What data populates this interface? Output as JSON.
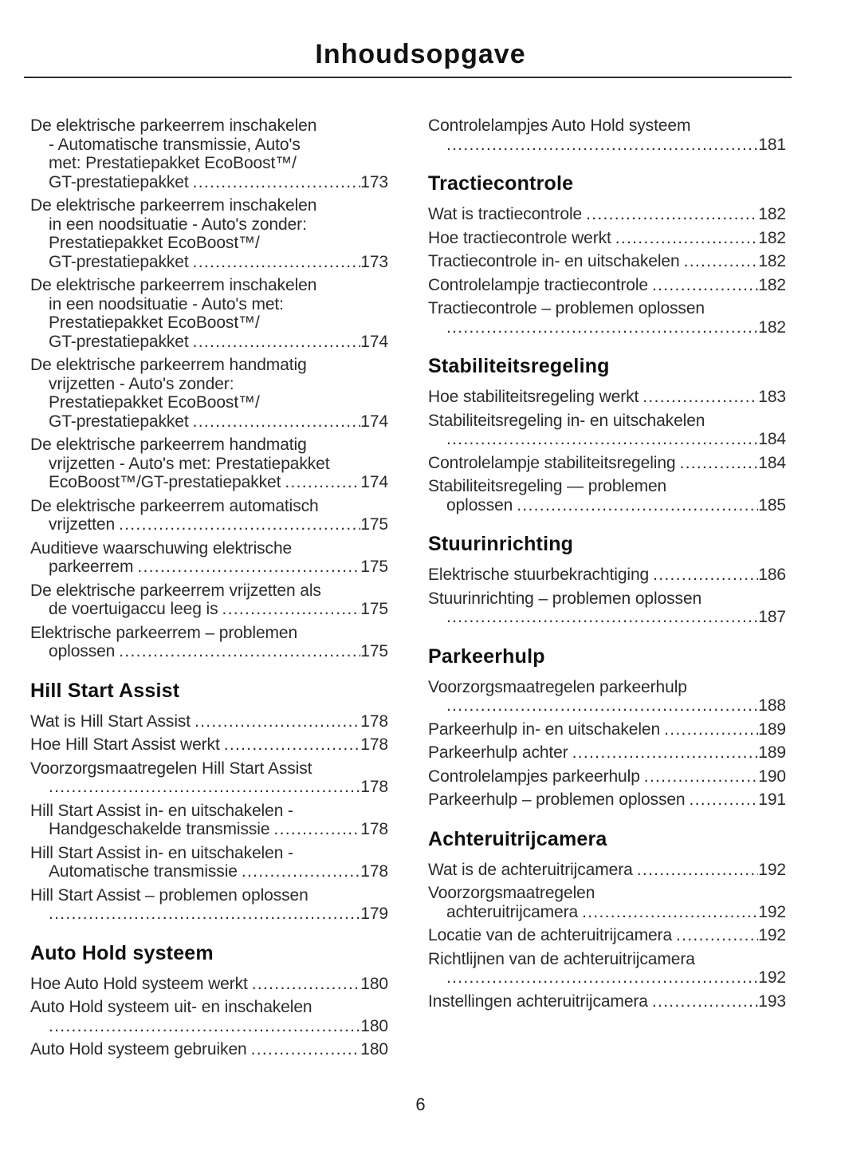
{
  "page": {
    "title": "Inhoudsopgave",
    "page_number": "6"
  },
  "columns": [
    {
      "sections": [
        {
          "heading": "",
          "entries": [
            {
              "lines": [
                "De elektrische parkeerrem inschakelen",
                "- Automatische transmissie, Auto's",
                "met: Prestatiepakket EcoBoost™/"
              ],
              "tail": "GT-prestatiepakket",
              "page": "173"
            },
            {
              "lines": [
                "De elektrische parkeerrem inschakelen",
                "in een noodsituatie - Auto's zonder:",
                "Prestatiepakket EcoBoost™/"
              ],
              "tail": "GT-prestatiepakket",
              "page": "173"
            },
            {
              "lines": [
                "De elektrische parkeerrem inschakelen",
                "in een noodsituatie - Auto's met:",
                "Prestatiepakket EcoBoost™/"
              ],
              "tail": "GT-prestatiepakket",
              "page": "174"
            },
            {
              "lines": [
                "De elektrische parkeerrem handmatig",
                "vrijzetten - Auto's zonder:",
                "Prestatiepakket EcoBoost™/"
              ],
              "tail": "GT-prestatiepakket",
              "page": "174"
            },
            {
              "lines": [
                "De elektrische parkeerrem handmatig",
                "vrijzetten - Auto's met: Prestatiepakket"
              ],
              "tail": "EcoBoost™/GT-prestatiepakket",
              "page": "174"
            },
            {
              "lines": [
                "De elektrische parkeerrem automatisch"
              ],
              "tail": "vrijzetten",
              "page": "175"
            },
            {
              "lines": [
                "Auditieve waarschuwing elektrische"
              ],
              "tail": "parkeerrem",
              "page": "175"
            },
            {
              "lines": [
                "De elektrische parkeerrem vrijzetten als"
              ],
              "tail": "de voertuigaccu leeg is",
              "page": "175"
            },
            {
              "lines": [
                "Elektrische parkeerrem – problemen"
              ],
              "tail": "oplossen",
              "page": "175"
            }
          ]
        },
        {
          "heading": "Hill Start Assist",
          "entries": [
            {
              "lines": [],
              "tail": "Wat is Hill Start Assist",
              "page": "178"
            },
            {
              "lines": [],
              "tail": "Hoe Hill Start Assist werkt",
              "page": "178"
            },
            {
              "lines": [
                "Voorzorgsmaatregelen Hill Start Assist"
              ],
              "tail": "",
              "page": "178"
            },
            {
              "lines": [
                "Hill Start Assist in- en uitschakelen -"
              ],
              "tail": "Handgeschakelde transmissie",
              "page": "178"
            },
            {
              "lines": [
                "Hill Start Assist in- en uitschakelen -"
              ],
              "tail": "Automatische transmissie",
              "page": "178"
            },
            {
              "lines": [
                "Hill Start Assist – problemen oplossen"
              ],
              "tail": "",
              "page": "179"
            }
          ]
        },
        {
          "heading": "Auto Hold systeem",
          "entries": [
            {
              "lines": [],
              "tail": "Hoe Auto Hold systeem werkt",
              "page": "180"
            },
            {
              "lines": [
                "Auto Hold systeem uit- en inschakelen"
              ],
              "tail": "",
              "page": "180"
            },
            {
              "lines": [],
              "tail": "Auto Hold systeem gebruiken",
              "page": "180"
            }
          ]
        }
      ]
    },
    {
      "sections": [
        {
          "heading": "",
          "entries": [
            {
              "lines": [
                "Controlelampjes Auto Hold systeem"
              ],
              "tail": "",
              "page": "181"
            }
          ]
        },
        {
          "heading": "Tractiecontrole",
          "entries": [
            {
              "lines": [],
              "tail": "Wat is tractiecontrole",
              "page": "182"
            },
            {
              "lines": [],
              "tail": "Hoe tractiecontrole werkt",
              "page": "182"
            },
            {
              "lines": [],
              "tail": "Tractiecontrole in- en uitschakelen",
              "page": "182"
            },
            {
              "lines": [],
              "tail": "Controlelampje tractiecontrole",
              "page": "182"
            },
            {
              "lines": [
                "Tractiecontrole – problemen oplossen"
              ],
              "tail": "",
              "page": "182"
            }
          ]
        },
        {
          "heading": "Stabiliteitsregeling",
          "entries": [
            {
              "lines": [],
              "tail": "Hoe stabiliteitsregeling werkt",
              "page": "183"
            },
            {
              "lines": [
                "Stabiliteitsregeling in- en uitschakelen"
              ],
              "tail": "",
              "page": "184"
            },
            {
              "lines": [],
              "tail": "Controlelampje stabiliteitsregeling",
              "page": "184"
            },
            {
              "lines": [
                "Stabiliteitsregeling — problemen"
              ],
              "tail": "oplossen",
              "page": "185"
            }
          ]
        },
        {
          "heading": "Stuurinrichting",
          "entries": [
            {
              "lines": [],
              "tail": "Elektrische stuurbekrachtiging",
              "page": "186"
            },
            {
              "lines": [
                "Stuurinrichting – problemen oplossen"
              ],
              "tail": "",
              "page": "187"
            }
          ]
        },
        {
          "heading": "Parkeerhulp",
          "entries": [
            {
              "lines": [
                "Voorzorgsmaatregelen parkeerhulp"
              ],
              "tail": "",
              "page": "188"
            },
            {
              "lines": [],
              "tail": "Parkeerhulp in- en uitschakelen",
              "page": "189"
            },
            {
              "lines": [],
              "tail": "Parkeerhulp achter",
              "page": "189"
            },
            {
              "lines": [],
              "tail": "Controlelampjes parkeerhulp",
              "page": "190"
            },
            {
              "lines": [],
              "tail": "Parkeerhulp – problemen oplossen",
              "page": "191"
            }
          ]
        },
        {
          "heading": "Achteruitrijcamera",
          "entries": [
            {
              "lines": [],
              "tail": "Wat is de achteruitrijcamera",
              "page": "192"
            },
            {
              "lines": [
                "Voorzorgsmaatregelen"
              ],
              "tail": "achteruitrijcamera",
              "page": "192"
            },
            {
              "lines": [],
              "tail": "Locatie van de achteruitrijcamera",
              "page": "192"
            },
            {
              "lines": [
                "Richtlijnen van de achteruitrijcamera"
              ],
              "tail": "",
              "page": "192"
            },
            {
              "lines": [],
              "tail": "Instellingen achteruitrijcamera",
              "page": "193"
            }
          ]
        }
      ]
    }
  ]
}
